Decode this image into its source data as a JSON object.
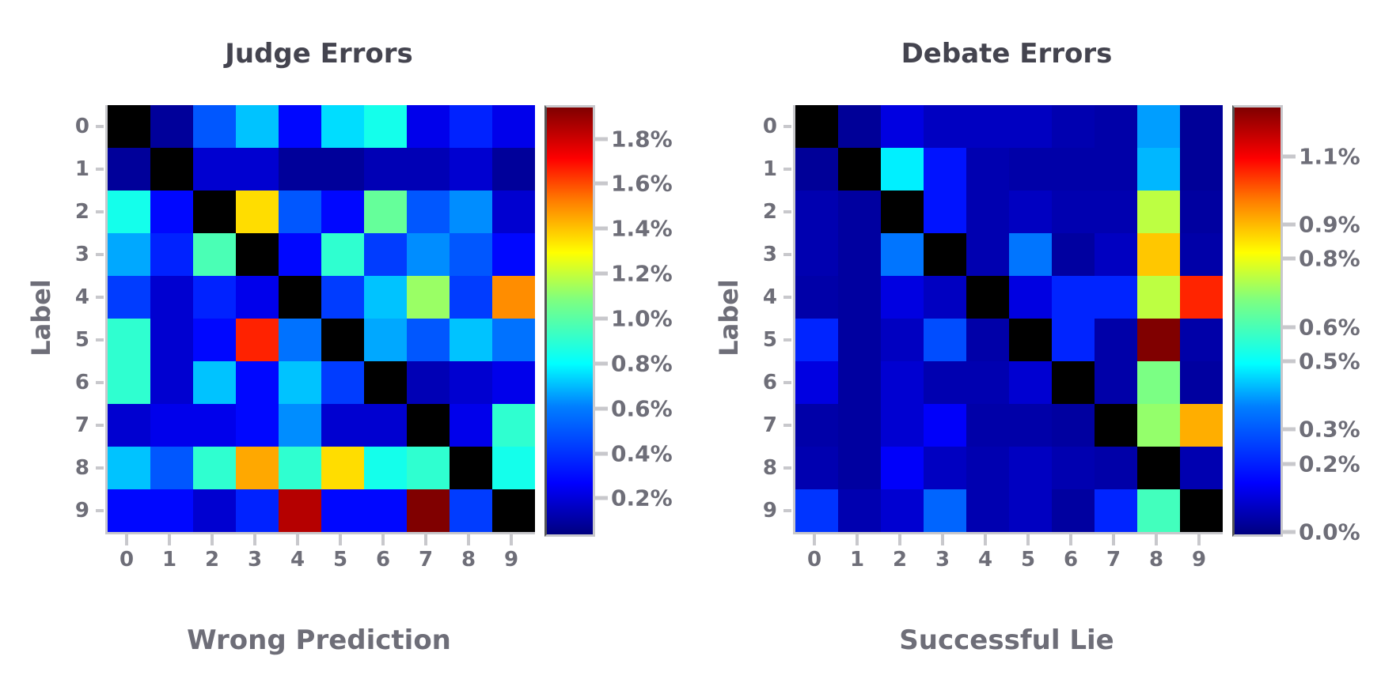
{
  "chart_data": [
    {
      "type": "heatmap",
      "title": "Judge Errors",
      "xlabel": "Wrong Prediction",
      "ylabel": "Label",
      "x_ticks": [
        "0",
        "1",
        "2",
        "3",
        "4",
        "5",
        "6",
        "7",
        "8",
        "9"
      ],
      "y_ticks": [
        "0",
        "1",
        "2",
        "3",
        "4",
        "5",
        "6",
        "7",
        "8",
        "9"
      ],
      "colormap": "jet",
      "colorbar_ticks": [
        "1.8%",
        "1.6%",
        "1.4%",
        "1.2%",
        "1.0%",
        "0.8%",
        "0.6%",
        "0.4%",
        "0.2%"
      ],
      "colorbar_range": [
        0.05,
        1.95
      ],
      "diagonal": "masked (black)",
      "values_percent": [
        [
          null,
          0.1,
          0.45,
          0.65,
          0.3,
          0.7,
          0.8,
          0.25,
          0.35,
          0.25
        ],
        [
          0.1,
          null,
          0.2,
          0.2,
          0.1,
          0.1,
          0.15,
          0.15,
          0.2,
          0.1
        ],
        [
          0.8,
          0.3,
          null,
          1.3,
          0.45,
          0.3,
          0.95,
          0.45,
          0.55,
          0.2
        ],
        [
          0.6,
          0.35,
          0.9,
          null,
          0.3,
          0.85,
          0.4,
          0.55,
          0.45,
          0.3
        ],
        [
          0.4,
          0.2,
          0.35,
          0.25,
          null,
          0.4,
          0.65,
          1.05,
          0.4,
          1.45
        ],
        [
          0.85,
          0.2,
          0.3,
          1.65,
          0.5,
          null,
          0.6,
          0.45,
          0.65,
          0.5
        ],
        [
          0.85,
          0.2,
          0.65,
          0.3,
          0.65,
          0.4,
          null,
          0.15,
          0.2,
          0.25
        ],
        [
          0.2,
          0.25,
          0.25,
          0.3,
          0.55,
          0.2,
          0.2,
          null,
          0.25,
          0.85
        ],
        [
          0.65,
          0.45,
          0.85,
          1.4,
          0.85,
          1.3,
          0.8,
          0.85,
          null,
          0.8
        ],
        [
          0.3,
          0.3,
          0.2,
          0.35,
          1.85,
          0.3,
          0.3,
          1.95,
          0.4,
          null
        ]
      ]
    },
    {
      "type": "heatmap",
      "title": "Debate Errors",
      "xlabel": "Successful Lie",
      "ylabel": "Label",
      "x_ticks": [
        "0",
        "1",
        "2",
        "3",
        "4",
        "5",
        "6",
        "7",
        "8",
        "9"
      ],
      "y_ticks": [
        "0",
        "1",
        "2",
        "3",
        "4",
        "5",
        "6",
        "7",
        "8",
        "9"
      ],
      "colormap": "jet",
      "colorbar_ticks": [
        "1.1%",
        "0.9%",
        "0.8%",
        "0.6%",
        "0.5%",
        "0.3%",
        "0.2%",
        "0.0%"
      ],
      "colorbar_range": [
        0.0,
        1.25
      ],
      "diagonal": "masked (black)",
      "values_percent": [
        [
          null,
          0.03,
          0.12,
          0.08,
          0.08,
          0.08,
          0.06,
          0.05,
          0.35,
          0.03
        ],
        [
          0.03,
          null,
          0.45,
          0.18,
          0.06,
          0.05,
          0.05,
          0.05,
          0.38,
          0.03
        ],
        [
          0.06,
          0.04,
          null,
          0.18,
          0.06,
          0.08,
          0.06,
          0.06,
          0.7,
          0.04
        ],
        [
          0.06,
          0.04,
          0.3,
          null,
          0.06,
          0.3,
          0.04,
          0.08,
          0.85,
          0.05
        ],
        [
          0.05,
          0.04,
          0.12,
          0.08,
          null,
          0.12,
          0.2,
          0.2,
          0.7,
          1.05
        ],
        [
          0.2,
          0.04,
          0.08,
          0.25,
          0.05,
          null,
          0.2,
          0.05,
          1.25,
          0.05
        ],
        [
          0.12,
          0.04,
          0.1,
          0.06,
          0.06,
          0.1,
          null,
          0.05,
          0.62,
          0.04
        ],
        [
          0.05,
          0.04,
          0.1,
          0.15,
          0.05,
          0.05,
          0.04,
          null,
          0.65,
          0.88
        ],
        [
          0.06,
          0.04,
          0.15,
          0.08,
          0.06,
          0.08,
          0.06,
          0.05,
          null,
          0.06
        ],
        [
          0.22,
          0.06,
          0.1,
          0.28,
          0.06,
          0.08,
          0.04,
          0.2,
          0.55,
          null
        ]
      ]
    }
  ]
}
